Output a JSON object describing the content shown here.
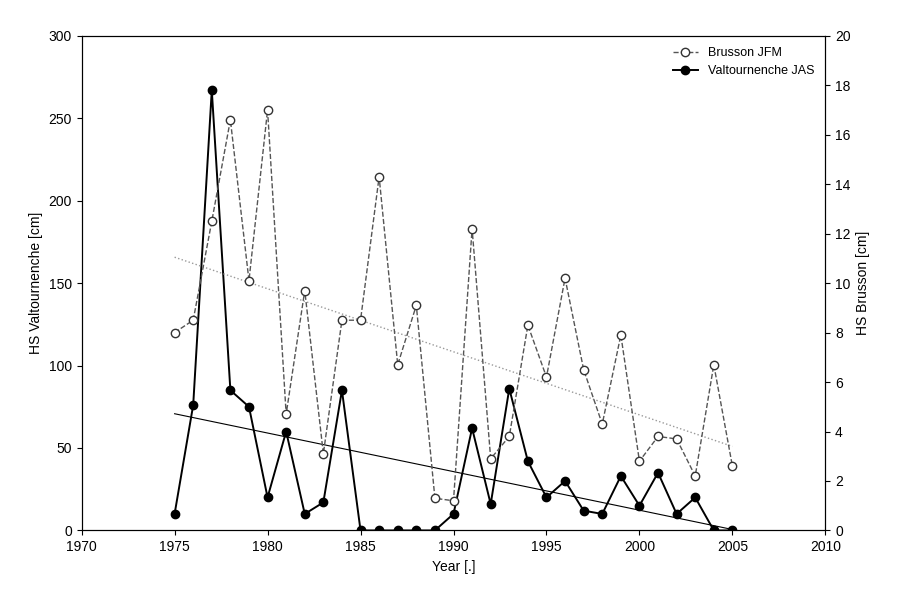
{
  "chart_data": {
    "type": "line",
    "x_label": "Year [.]",
    "y_label": "HS Valtournenche [cm]",
    "y2_label": "HS Brusson [cm]",
    "x": [
      1975,
      1976,
      1977,
      1978,
      1979,
      1980,
      1981,
      1982,
      1983,
      1984,
      1985,
      1986,
      1987,
      1988,
      1989,
      1990,
      1991,
      1992,
      1993,
      1994,
      1995,
      1996,
      1997,
      1998,
      1999,
      2000,
      2001,
      2002,
      2003,
      2004,
      2005
    ],
    "series": [
      {
        "name": "Brusson JFM",
        "color": "#555555",
        "axis": "y2",
        "marker": "open_circle",
        "line_style": "dashed",
        "values": [
          8.0,
          8.5,
          12.5,
          16.6,
          10.1,
          17.0,
          4.7,
          9.7,
          3.1,
          8.5,
          8.5,
          14.3,
          6.7,
          9.1,
          1.3,
          1.2,
          12.2,
          2.9,
          3.8,
          8.3,
          6.2,
          10.2,
          6.5,
          4.3,
          7.9,
          2.8,
          3.8,
          3.7,
          2.2,
          6.7,
          2.6
        ]
      },
      {
        "name": "Valtournenche JAS",
        "color": "#000000",
        "axis": "y",
        "marker": "circle",
        "line_style": "solid",
        "values": [
          10,
          76,
          267,
          85,
          75,
          20,
          60,
          10,
          17,
          85,
          0,
          0,
          0,
          0,
          0,
          10,
          62,
          16,
          86,
          42,
          20,
          30,
          12,
          10,
          33,
          15,
          35,
          10,
          20,
          0,
          0
        ]
      }
    ],
    "xlim": [
      1970,
      2010
    ],
    "xticks": [
      1970,
      1975,
      1980,
      1985,
      1990,
      1995,
      2000,
      2005,
      2010
    ],
    "ylim": [
      0,
      300
    ],
    "yticks": [
      0,
      50,
      100,
      150,
      200,
      250,
      300
    ],
    "y2lim": [
      0,
      20
    ],
    "y2ticks": [
      0,
      2,
      4,
      6,
      8,
      10,
      12,
      14,
      16,
      18,
      20
    ],
    "legend": "upper right",
    "grid": false
  }
}
